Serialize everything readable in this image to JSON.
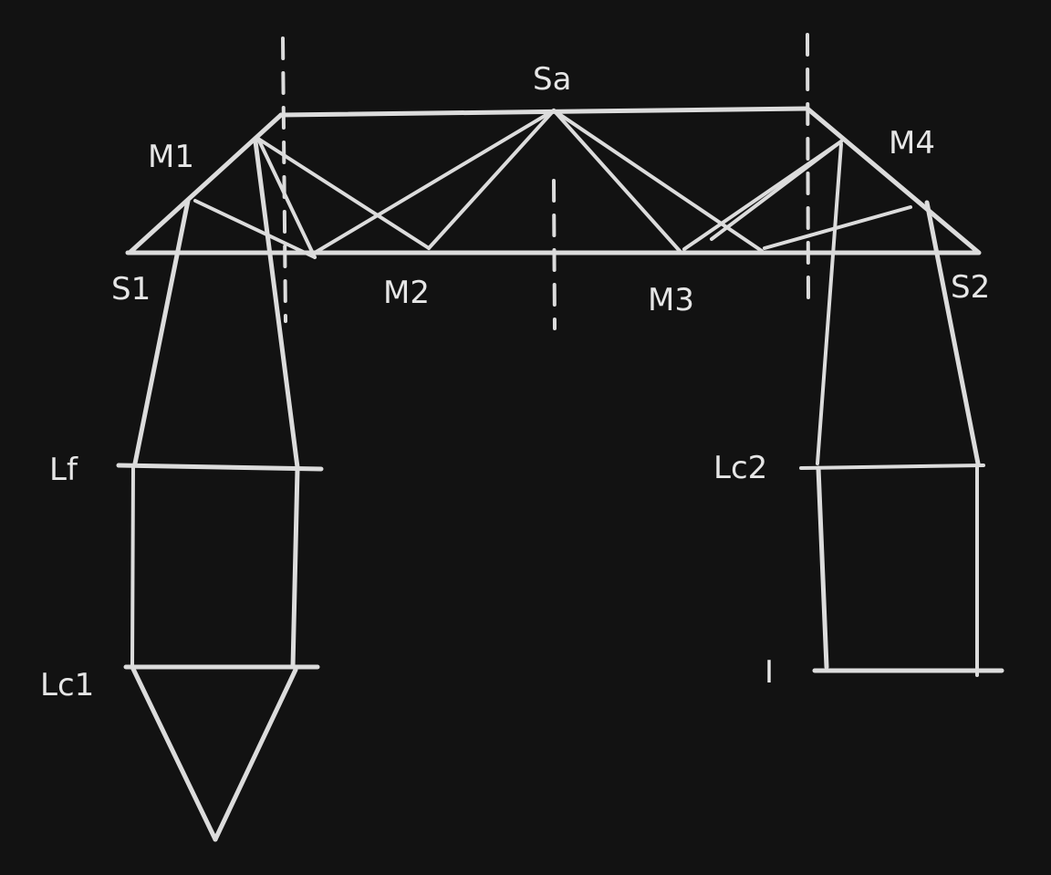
{
  "colors": {
    "background": "#121212",
    "stroke": "#dcdcdc",
    "label": "#e6e6e6"
  },
  "labels": {
    "sa": "Sa",
    "m1": "M1",
    "m2": "M2",
    "m3": "M3",
    "m4": "M4",
    "s1": "S1",
    "s2": "S2",
    "lf": "Lf",
    "lc1": "Lc1",
    "lc2": "Lc2",
    "i": "I"
  }
}
